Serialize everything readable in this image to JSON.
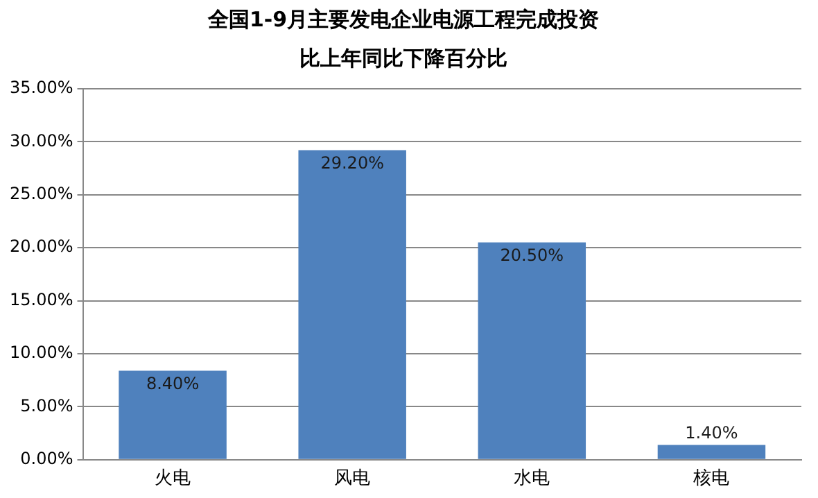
{
  "chart_data": {
    "type": "bar",
    "title": "全国1-9月主要发电企业电源工程完成投资",
    "subtitle": "比上年同比下降百分比",
    "categories": [
      "火电",
      "风电",
      "水电",
      "核电"
    ],
    "values": [
      8.4,
      29.2,
      20.5,
      1.4
    ],
    "value_labels": [
      "8.40%",
      "29.20%",
      "20.50%",
      "1.40%"
    ],
    "color": "#4f81bd",
    "ylim": [
      0,
      35
    ],
    "yticks": [
      {
        "value": 0,
        "label": "0.00%"
      },
      {
        "value": 5,
        "label": "5.00%"
      },
      {
        "value": 10,
        "label": "10.00%"
      },
      {
        "value": 15,
        "label": "15.00%"
      },
      {
        "value": 20,
        "label": "20.00%"
      },
      {
        "value": 25,
        "label": "25.00%"
      },
      {
        "value": 30,
        "label": "30.00%"
      },
      {
        "value": 35,
        "label": "35.00%"
      }
    ],
    "grid": "y",
    "legend": false
  }
}
